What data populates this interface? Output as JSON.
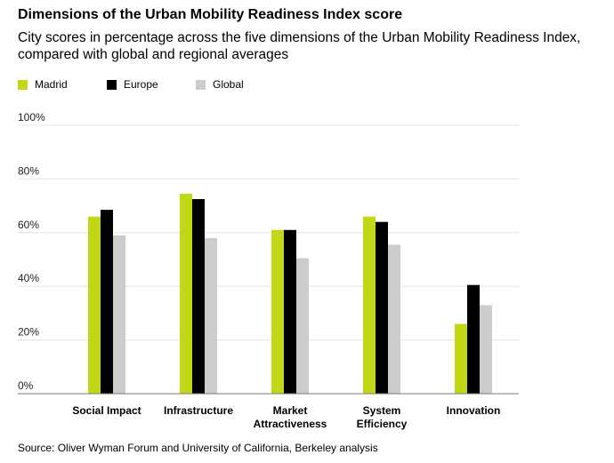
{
  "chart_data": {
    "type": "bar",
    "title": "Dimensions of the Urban Mobility Readiness Index score",
    "subtitle": "City scores in percentage across the five dimensions of the Urban Mobility Readiness Index, compared with global and regional averages",
    "categories": [
      "Social Impact",
      "Infrastructure",
      "Market Attractiveness",
      "System Efficiency",
      "Innovation"
    ],
    "category_lines": [
      [
        "Social Impact"
      ],
      [
        "Infrastructure"
      ],
      [
        "Market",
        "Attractiveness"
      ],
      [
        "System",
        "Efficiency"
      ],
      [
        "Innovation"
      ]
    ],
    "series": [
      {
        "name": "Madrid",
        "color": "#c2d817",
        "values": [
          66,
          74.5,
          61,
          66,
          26
        ]
      },
      {
        "name": "Europe",
        "color": "#000000",
        "values": [
          68.5,
          72.5,
          61,
          64,
          40.5
        ]
      },
      {
        "name": "Global",
        "color": "#cccccc",
        "values": [
          59,
          58,
          50.5,
          55.5,
          33
        ]
      }
    ],
    "y_ticks": [
      0,
      20,
      40,
      60,
      80,
      100
    ],
    "y_tick_labels": [
      "0%",
      "20%",
      "40%",
      "60%",
      "80%",
      "100%"
    ],
    "ylim": [
      0,
      100
    ],
    "xlabel": "",
    "ylabel": "",
    "grid": true,
    "legend_position": "top-left"
  },
  "source": "Source: Oliver Wyman Forum and University of California, Berkeley analysis"
}
